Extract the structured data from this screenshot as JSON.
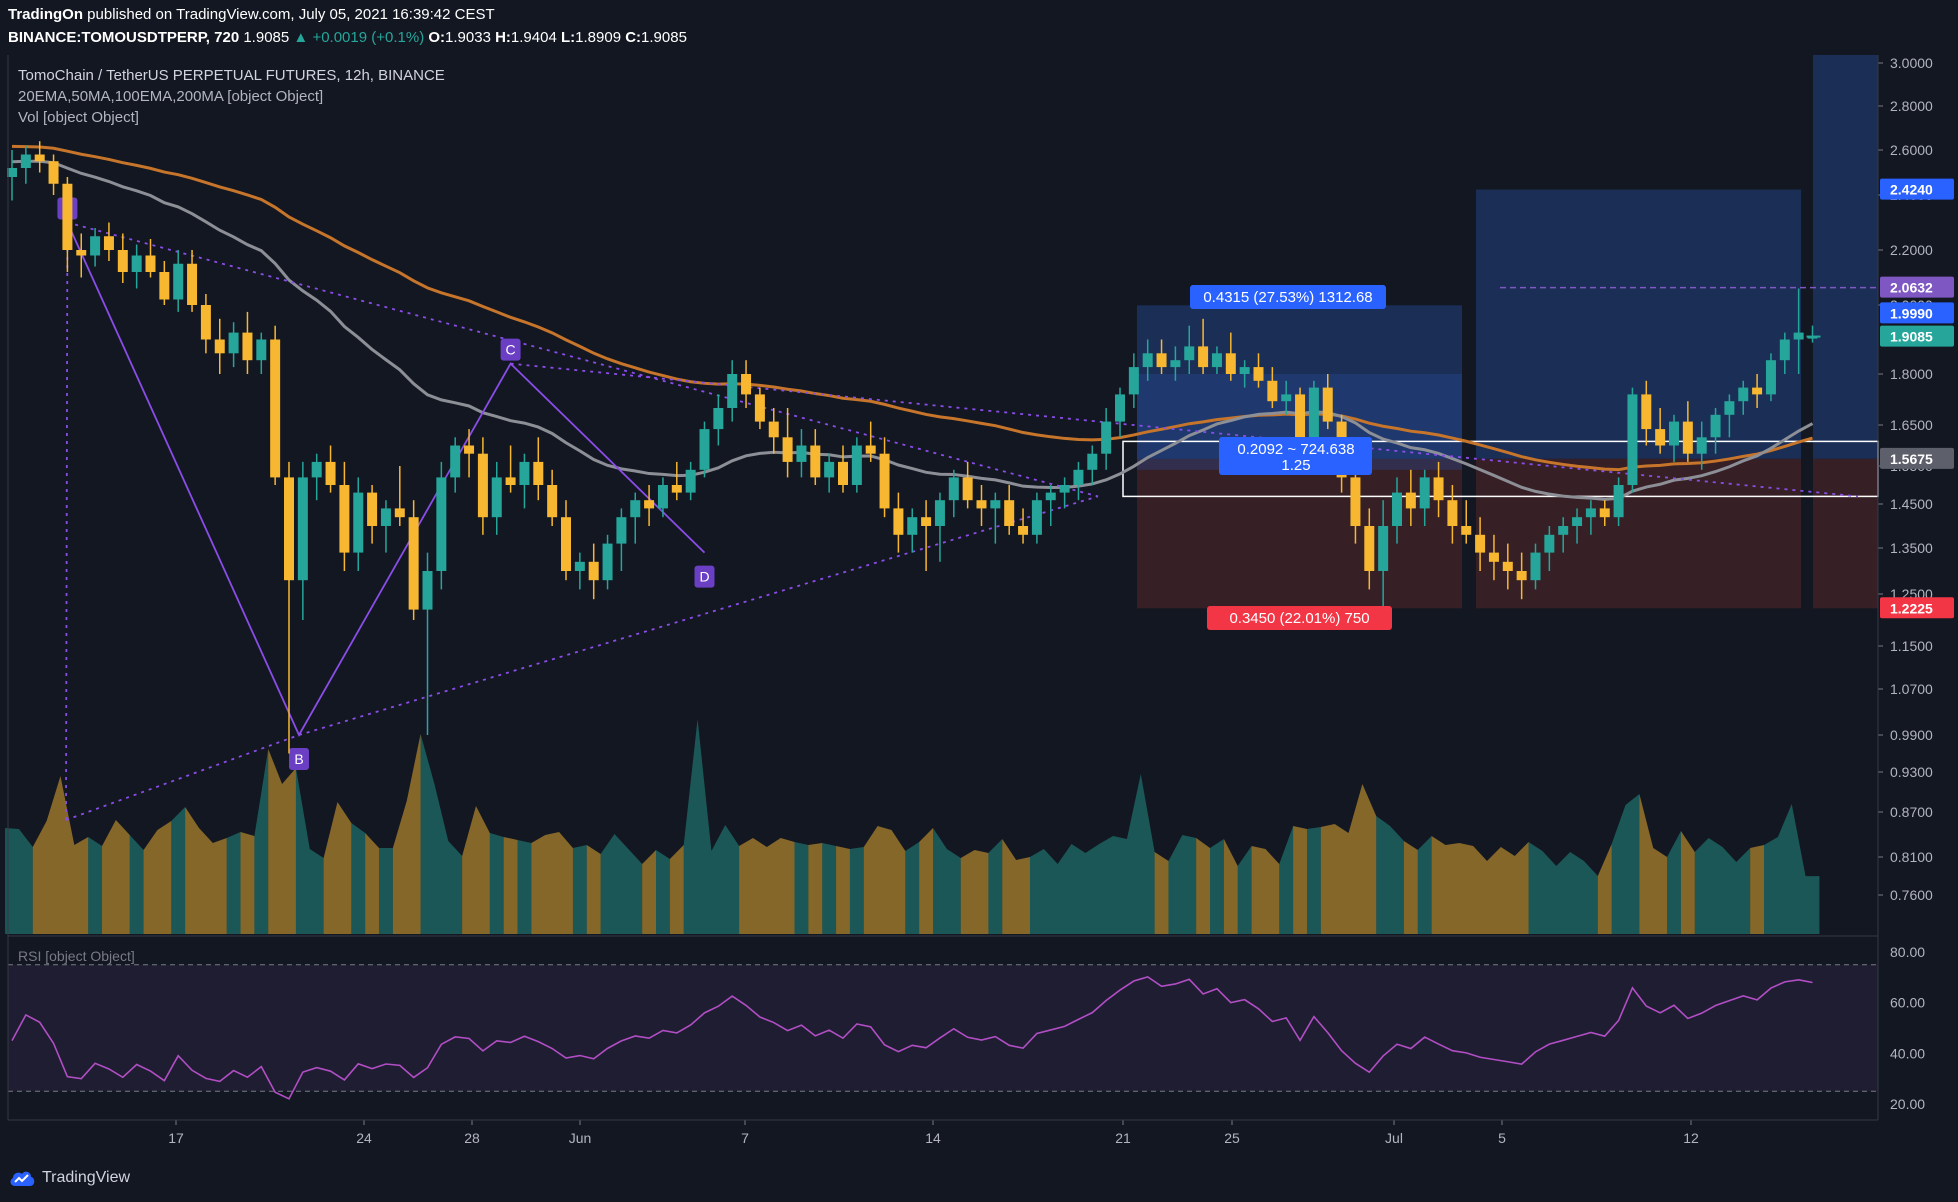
{
  "header": {
    "publisher": "TradingOn",
    "published_text": "published on TradingView.com, July 05, 2021 16:39:42 CEST",
    "symbol": "BINANCE:TOMOUSDTPERP, 720",
    "last": "1.9085",
    "change": "+0.0019 (+0.1%)",
    "o_label": "O:",
    "o": "1.9033",
    "h_label": "H:",
    "h": "1.9404",
    "l_label": "L:",
    "l": "1.8909",
    "c_label": "C:",
    "c": "1.9085"
  },
  "legend": {
    "title": "TomoChain / TetherUS PERPETUAL FUTURES, 12h, BINANCE",
    "indicators": "20EMA,50MA,100EMA,200MA [object Object]",
    "volume": "Vol [object Object]",
    "rsi": "RSI [object Object]"
  },
  "footer": {
    "brand": "TradingView"
  },
  "colors": {
    "background": "#131722",
    "up": "#26a69a",
    "down": "#f7b731",
    "ma_orange": "#c6752b",
    "ma_gray": "#8d8f96",
    "pattern": "#8a4de8",
    "target_zone": "#1d3768",
    "stop_zone": "#3d2227",
    "rsi": "#b24ec4"
  },
  "chart_data": {
    "type": "candlestick",
    "price_axis": {
      "ylim": [
        0.7,
        3.04
      ],
      "ticks": [
        "3.0000",
        "2.8000",
        "2.6000",
        "2.4000",
        "2.2000",
        "2.0000",
        "1.8000",
        "1.6500",
        "1.5500",
        "1.4500",
        "1.3500",
        "1.2500",
        "1.1500",
        "1.0700",
        "0.9900",
        "0.9300",
        "0.8700",
        "0.8100",
        "0.7600"
      ]
    },
    "time_axis": {
      "ticks": [
        "17",
        "24",
        "28",
        "Jun",
        "7",
        "14",
        "21",
        "25",
        "Jul",
        "5",
        "12"
      ]
    },
    "price_labels": [
      {
        "value": "2.4240",
        "kind": "target"
      },
      {
        "value": "2.0632",
        "kind": "high"
      },
      {
        "value": "1.9990",
        "kind": "level"
      },
      {
        "value": "1.9085",
        "kind": "last"
      },
      {
        "value": "1.5675",
        "kind": "entry"
      },
      {
        "value": "1.2225",
        "kind": "stop"
      }
    ],
    "annotations": [
      {
        "text": "0.4315 (27.53%) 1312.68",
        "kind": "profit"
      },
      {
        "text": "0.3450 (22.01%) 750",
        "kind": "loss"
      },
      {
        "text": "0.2092 ~ 724.638",
        "kind": "ratio"
      },
      {
        "text": "1.25",
        "kind": "ratio"
      }
    ],
    "pattern_points": [
      {
        "label": "A",
        "price": 2.3
      },
      {
        "label": "B",
        "price": 0.99
      },
      {
        "label": "C",
        "price": 1.83
      },
      {
        "label": "D",
        "price": 1.34
      }
    ],
    "candles": [
      {
        "o": 2.48,
        "h": 2.6,
        "l": 2.38,
        "c": 2.52
      },
      {
        "o": 2.52,
        "h": 2.62,
        "l": 2.45,
        "c": 2.58
      },
      {
        "o": 2.58,
        "h": 2.64,
        "l": 2.5,
        "c": 2.55
      },
      {
        "o": 2.55,
        "h": 2.58,
        "l": 2.4,
        "c": 2.45
      },
      {
        "o": 2.45,
        "h": 2.48,
        "l": 2.12,
        "c": 2.2
      },
      {
        "o": 2.2,
        "h": 2.26,
        "l": 2.1,
        "c": 2.18
      },
      {
        "o": 2.18,
        "h": 2.28,
        "l": 2.14,
        "c": 2.25
      },
      {
        "o": 2.25,
        "h": 2.3,
        "l": 2.16,
        "c": 2.2
      },
      {
        "o": 2.2,
        "h": 2.26,
        "l": 2.08,
        "c": 2.12
      },
      {
        "o": 2.12,
        "h": 2.22,
        "l": 2.06,
        "c": 2.18
      },
      {
        "o": 2.18,
        "h": 2.24,
        "l": 2.1,
        "c": 2.12
      },
      {
        "o": 2.12,
        "h": 2.16,
        "l": 2.0,
        "c": 2.02
      },
      {
        "o": 2.02,
        "h": 2.2,
        "l": 1.98,
        "c": 2.15
      },
      {
        "o": 2.15,
        "h": 2.2,
        "l": 1.98,
        "c": 2.0
      },
      {
        "o": 2.0,
        "h": 2.04,
        "l": 1.86,
        "c": 1.9
      },
      {
        "o": 1.9,
        "h": 1.96,
        "l": 1.8,
        "c": 1.86
      },
      {
        "o": 1.86,
        "h": 1.95,
        "l": 1.82,
        "c": 1.92
      },
      {
        "o": 1.92,
        "h": 1.98,
        "l": 1.8,
        "c": 1.84
      },
      {
        "o": 1.84,
        "h": 1.92,
        "l": 1.8,
        "c": 1.9
      },
      {
        "o": 1.9,
        "h": 1.94,
        "l": 1.5,
        "c": 1.52
      },
      {
        "o": 1.52,
        "h": 1.56,
        "l": 0.96,
        "c": 1.28
      },
      {
        "o": 1.28,
        "h": 1.56,
        "l": 1.2,
        "c": 1.52
      },
      {
        "o": 1.52,
        "h": 1.58,
        "l": 1.46,
        "c": 1.56
      },
      {
        "o": 1.56,
        "h": 1.6,
        "l": 1.48,
        "c": 1.5
      },
      {
        "o": 1.5,
        "h": 1.56,
        "l": 1.3,
        "c": 1.34
      },
      {
        "o": 1.34,
        "h": 1.52,
        "l": 1.3,
        "c": 1.48
      },
      {
        "o": 1.48,
        "h": 1.5,
        "l": 1.36,
        "c": 1.4
      },
      {
        "o": 1.4,
        "h": 1.46,
        "l": 1.34,
        "c": 1.44
      },
      {
        "o": 1.44,
        "h": 1.55,
        "l": 1.4,
        "c": 1.42
      },
      {
        "o": 1.42,
        "h": 1.46,
        "l": 1.2,
        "c": 1.22
      },
      {
        "o": 1.22,
        "h": 1.34,
        "l": 0.99,
        "c": 1.3
      },
      {
        "o": 1.3,
        "h": 1.56,
        "l": 1.26,
        "c": 1.52
      },
      {
        "o": 1.52,
        "h": 1.62,
        "l": 1.48,
        "c": 1.6
      },
      {
        "o": 1.6,
        "h": 1.64,
        "l": 1.52,
        "c": 1.58
      },
      {
        "o": 1.58,
        "h": 1.62,
        "l": 1.38,
        "c": 1.42
      },
      {
        "o": 1.42,
        "h": 1.56,
        "l": 1.38,
        "c": 1.52
      },
      {
        "o": 1.52,
        "h": 1.6,
        "l": 1.48,
        "c": 1.5
      },
      {
        "o": 1.5,
        "h": 1.58,
        "l": 1.44,
        "c": 1.56
      },
      {
        "o": 1.56,
        "h": 1.62,
        "l": 1.46,
        "c": 1.5
      },
      {
        "o": 1.5,
        "h": 1.54,
        "l": 1.4,
        "c": 1.42
      },
      {
        "o": 1.42,
        "h": 1.46,
        "l": 1.28,
        "c": 1.3
      },
      {
        "o": 1.3,
        "h": 1.34,
        "l": 1.26,
        "c": 1.32
      },
      {
        "o": 1.32,
        "h": 1.36,
        "l": 1.24,
        "c": 1.28
      },
      {
        "o": 1.28,
        "h": 1.38,
        "l": 1.26,
        "c": 1.36
      },
      {
        "o": 1.36,
        "h": 1.44,
        "l": 1.3,
        "c": 1.42
      },
      {
        "o": 1.42,
        "h": 1.48,
        "l": 1.36,
        "c": 1.46
      },
      {
        "o": 1.46,
        "h": 1.5,
        "l": 1.4,
        "c": 1.44
      },
      {
        "o": 1.44,
        "h": 1.52,
        "l": 1.42,
        "c": 1.5
      },
      {
        "o": 1.5,
        "h": 1.56,
        "l": 1.46,
        "c": 1.48
      },
      {
        "o": 1.48,
        "h": 1.56,
        "l": 1.46,
        "c": 1.54
      },
      {
        "o": 1.54,
        "h": 1.66,
        "l": 1.52,
        "c": 1.64
      },
      {
        "o": 1.64,
        "h": 1.74,
        "l": 1.6,
        "c": 1.7
      },
      {
        "o": 1.7,
        "h": 1.84,
        "l": 1.66,
        "c": 1.8
      },
      {
        "o": 1.8,
        "h": 1.84,
        "l": 1.7,
        "c": 1.74
      },
      {
        "o": 1.74,
        "h": 1.76,
        "l": 1.64,
        "c": 1.66
      },
      {
        "o": 1.66,
        "h": 1.7,
        "l": 1.58,
        "c": 1.62
      },
      {
        "o": 1.62,
        "h": 1.7,
        "l": 1.52,
        "c": 1.56
      },
      {
        "o": 1.56,
        "h": 1.64,
        "l": 1.52,
        "c": 1.6
      },
      {
        "o": 1.6,
        "h": 1.64,
        "l": 1.5,
        "c": 1.52
      },
      {
        "o": 1.52,
        "h": 1.58,
        "l": 1.48,
        "c": 1.56
      },
      {
        "o": 1.56,
        "h": 1.6,
        "l": 1.48,
        "c": 1.5
      },
      {
        "o": 1.5,
        "h": 1.62,
        "l": 1.48,
        "c": 1.6
      },
      {
        "o": 1.6,
        "h": 1.66,
        "l": 1.56,
        "c": 1.58
      },
      {
        "o": 1.58,
        "h": 1.62,
        "l": 1.42,
        "c": 1.44
      },
      {
        "o": 1.44,
        "h": 1.48,
        "l": 1.34,
        "c": 1.38
      },
      {
        "o": 1.38,
        "h": 1.44,
        "l": 1.34,
        "c": 1.42
      },
      {
        "o": 1.42,
        "h": 1.46,
        "l": 1.3,
        "c": 1.4
      },
      {
        "o": 1.4,
        "h": 1.48,
        "l": 1.32,
        "c": 1.46
      },
      {
        "o": 1.46,
        "h": 1.54,
        "l": 1.42,
        "c": 1.52
      },
      {
        "o": 1.52,
        "h": 1.56,
        "l": 1.44,
        "c": 1.46
      },
      {
        "o": 1.46,
        "h": 1.5,
        "l": 1.4,
        "c": 1.44
      },
      {
        "o": 1.44,
        "h": 1.48,
        "l": 1.36,
        "c": 1.46
      },
      {
        "o": 1.46,
        "h": 1.5,
        "l": 1.38,
        "c": 1.4
      },
      {
        "o": 1.4,
        "h": 1.44,
        "l": 1.36,
        "c": 1.38
      },
      {
        "o": 1.38,
        "h": 1.48,
        "l": 1.36,
        "c": 1.46
      },
      {
        "o": 1.46,
        "h": 1.5,
        "l": 1.4,
        "c": 1.48
      },
      {
        "o": 1.48,
        "h": 1.52,
        "l": 1.44,
        "c": 1.5
      },
      {
        "o": 1.5,
        "h": 1.56,
        "l": 1.46,
        "c": 1.54
      },
      {
        "o": 1.54,
        "h": 1.6,
        "l": 1.5,
        "c": 1.58
      },
      {
        "o": 1.58,
        "h": 1.7,
        "l": 1.54,
        "c": 1.66
      },
      {
        "o": 1.66,
        "h": 1.76,
        "l": 1.62,
        "c": 1.74
      },
      {
        "o": 1.74,
        "h": 1.86,
        "l": 1.7,
        "c": 1.82
      },
      {
        "o": 1.82,
        "h": 1.9,
        "l": 1.78,
        "c": 1.86
      },
      {
        "o": 1.86,
        "h": 1.9,
        "l": 1.8,
        "c": 1.82
      },
      {
        "o": 1.82,
        "h": 1.88,
        "l": 1.78,
        "c": 1.84
      },
      {
        "o": 1.84,
        "h": 1.94,
        "l": 1.8,
        "c": 1.88
      },
      {
        "o": 1.88,
        "h": 1.96,
        "l": 1.8,
        "c": 1.82
      },
      {
        "o": 1.82,
        "h": 1.88,
        "l": 1.8,
        "c": 1.86
      },
      {
        "o": 1.86,
        "h": 1.92,
        "l": 1.78,
        "c": 1.8
      },
      {
        "o": 1.8,
        "h": 1.84,
        "l": 1.76,
        "c": 1.82
      },
      {
        "o": 1.82,
        "h": 1.86,
        "l": 1.76,
        "c": 1.78
      },
      {
        "o": 1.78,
        "h": 1.82,
        "l": 1.7,
        "c": 1.72
      },
      {
        "o": 1.72,
        "h": 1.78,
        "l": 1.68,
        "c": 1.74
      },
      {
        "o": 1.74,
        "h": 1.76,
        "l": 1.58,
        "c": 1.62
      },
      {
        "o": 1.62,
        "h": 1.78,
        "l": 1.58,
        "c": 1.76
      },
      {
        "o": 1.76,
        "h": 1.8,
        "l": 1.64,
        "c": 1.66
      },
      {
        "o": 1.66,
        "h": 1.68,
        "l": 1.48,
        "c": 1.52
      },
      {
        "o": 1.52,
        "h": 1.56,
        "l": 1.36,
        "c": 1.4
      },
      {
        "o": 1.4,
        "h": 1.44,
        "l": 1.26,
        "c": 1.3
      },
      {
        "o": 1.3,
        "h": 1.46,
        "l": 1.22,
        "c": 1.4
      },
      {
        "o": 1.4,
        "h": 1.52,
        "l": 1.36,
        "c": 1.48
      },
      {
        "o": 1.48,
        "h": 1.54,
        "l": 1.4,
        "c": 1.44
      },
      {
        "o": 1.44,
        "h": 1.54,
        "l": 1.4,
        "c": 1.52
      },
      {
        "o": 1.52,
        "h": 1.56,
        "l": 1.42,
        "c": 1.46
      },
      {
        "o": 1.46,
        "h": 1.5,
        "l": 1.36,
        "c": 1.4
      },
      {
        "o": 1.4,
        "h": 1.46,
        "l": 1.36,
        "c": 1.38
      },
      {
        "o": 1.38,
        "h": 1.42,
        "l": 1.3,
        "c": 1.34
      },
      {
        "o": 1.34,
        "h": 1.38,
        "l": 1.28,
        "c": 1.32
      },
      {
        "o": 1.32,
        "h": 1.36,
        "l": 1.26,
        "c": 1.3
      },
      {
        "o": 1.3,
        "h": 1.34,
        "l": 1.24,
        "c": 1.28
      },
      {
        "o": 1.28,
        "h": 1.36,
        "l": 1.26,
        "c": 1.34
      },
      {
        "o": 1.34,
        "h": 1.4,
        "l": 1.3,
        "c": 1.38
      },
      {
        "o": 1.38,
        "h": 1.42,
        "l": 1.34,
        "c": 1.4
      },
      {
        "o": 1.4,
        "h": 1.44,
        "l": 1.36,
        "c": 1.42
      },
      {
        "o": 1.42,
        "h": 1.46,
        "l": 1.38,
        "c": 1.44
      },
      {
        "o": 1.44,
        "h": 1.46,
        "l": 1.4,
        "c": 1.42
      },
      {
        "o": 1.42,
        "h": 1.52,
        "l": 1.4,
        "c": 1.5
      },
      {
        "o": 1.5,
        "h": 1.76,
        "l": 1.48,
        "c": 1.74
      },
      {
        "o": 1.74,
        "h": 1.78,
        "l": 1.6,
        "c": 1.64
      },
      {
        "o": 1.64,
        "h": 1.7,
        "l": 1.58,
        "c": 1.6
      },
      {
        "o": 1.6,
        "h": 1.68,
        "l": 1.56,
        "c": 1.66
      },
      {
        "o": 1.66,
        "h": 1.72,
        "l": 1.56,
        "c": 1.58
      },
      {
        "o": 1.58,
        "h": 1.66,
        "l": 1.54,
        "c": 1.62
      },
      {
        "o": 1.62,
        "h": 1.7,
        "l": 1.58,
        "c": 1.68
      },
      {
        "o": 1.68,
        "h": 1.74,
        "l": 1.62,
        "c": 1.72
      },
      {
        "o": 1.72,
        "h": 1.78,
        "l": 1.68,
        "c": 1.76
      },
      {
        "o": 1.76,
        "h": 1.8,
        "l": 1.7,
        "c": 1.74
      },
      {
        "o": 1.74,
        "h": 1.86,
        "l": 1.72,
        "c": 1.84
      },
      {
        "o": 1.84,
        "h": 1.92,
        "l": 1.8,
        "c": 1.9
      },
      {
        "o": 1.9,
        "h": 2.06,
        "l": 1.8,
        "c": 1.92
      },
      {
        "o": 1.9033,
        "h": 1.9404,
        "l": 1.8909,
        "c": 1.9085
      }
    ],
    "rsi": {
      "ylim": [
        20,
        80
      ],
      "ticks": [
        "80.00",
        "60.00",
        "40.00",
        "20.00"
      ],
      "bands": [
        75,
        25
      ]
    }
  }
}
